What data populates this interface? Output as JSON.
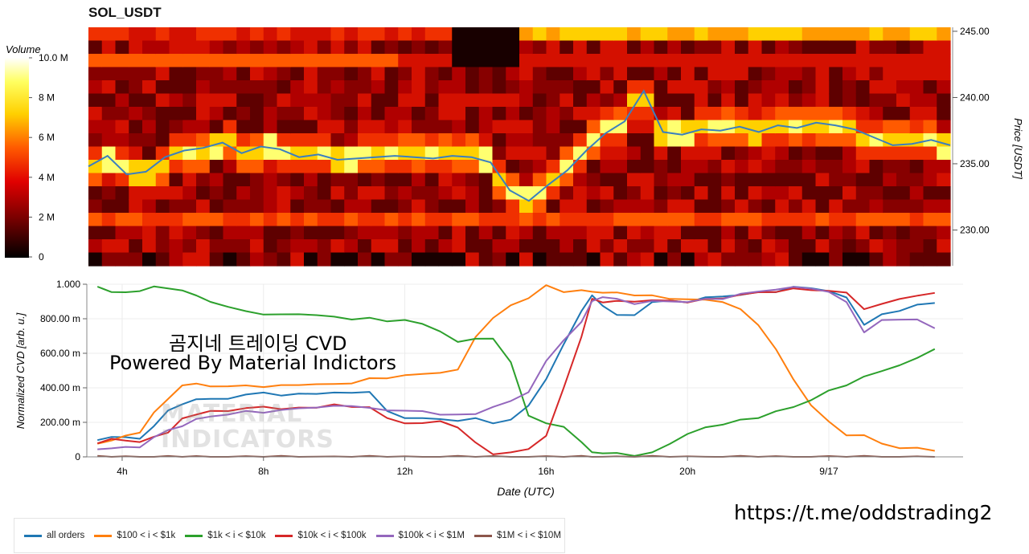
{
  "heatmap": {
    "title": "SOL_USDT",
    "colorbar": {
      "label": "Volume",
      "ticks": [
        "0",
        "2 M",
        "4 M",
        "6 M",
        "8 M",
        "10.0 M"
      ],
      "colors": [
        "#000000",
        "#7a0000",
        "#e00000",
        "#ff5a00",
        "#ffd000",
        "#ffff60",
        "#ffffff"
      ]
    },
    "price_axis": {
      "label": "Price [USDT]",
      "ticks": [
        "245.00",
        "240.00",
        "235.00",
        "230.00"
      ]
    }
  },
  "cvd": {
    "ylabel": "Normalized CVD [arb. u.]",
    "xlabel": "Date (UTC)",
    "yticks": [
      "0",
      "200.00 m",
      "400.00 m",
      "600.00 m",
      "800.00 m",
      "1.000"
    ],
    "xticks": [
      "4h",
      "8h",
      "12h",
      "16h",
      "20h",
      "9/17"
    ]
  },
  "overlay": {
    "line1": "곰지네 트레이딩 CVD",
    "line2": "Powered By Material Indictors",
    "watermark_line1": "MATERIAL",
    "watermark_line2": "INDICATORS"
  },
  "link": "https://t.me/oddstrading2",
  "legend": [
    {
      "name": "all orders",
      "color": "#1f77b4"
    },
    {
      "name": "$100 < i < $1k",
      "color": "#ff7f0e"
    },
    {
      "name": "$1k < i < $10k",
      "color": "#2ca02c"
    },
    {
      "name": "$10k < i < $100k",
      "color": "#d62728"
    },
    {
      "name": "$100k < i < $1M",
      "color": "#9467bd"
    },
    {
      "name": "$1M < i < $10M",
      "color": "#8c564b"
    }
  ],
  "chart_data": [
    {
      "type": "heatmap",
      "title": "SOL_USDT",
      "ylabel": "Price [USDT]",
      "ylim": [
        227.3,
        245.3
      ],
      "colorbar_range": [
        0,
        10000000
      ],
      "x": [
        "3h",
        "3.5h",
        "4h",
        "4.5h",
        "5h",
        "5.5h",
        "6h",
        "6.5h",
        "7h",
        "7.5h",
        "8h",
        "8.5h",
        "9h",
        "9.5h",
        "10h",
        "10.5h",
        "11h",
        "11.5h",
        "12h",
        "12.5h",
        "13h",
        "13.5h",
        "14h",
        "14.5h",
        "15h",
        "15.5h",
        "16h",
        "16.5h",
        "17h",
        "17.5h",
        "18h",
        "18.5h",
        "19h",
        "19.5h",
        "20h",
        "20.5h",
        "21h",
        "21.5h",
        "22h",
        "22.5h",
        "23h",
        "23.5h",
        "0h",
        "0.5h",
        "1h",
        "1.5h"
      ],
      "price_series": {
        "name": "price",
        "values": [
          234.8,
          235.6,
          234.2,
          234.4,
          235.5,
          236.0,
          236.2,
          236.6,
          235.8,
          236.3,
          236.1,
          235.5,
          235.7,
          235.3,
          235.4,
          235.5,
          235.6,
          235.5,
          235.4,
          235.6,
          235.5,
          235.1,
          233.0,
          232.2,
          233.4,
          234.5,
          236.0,
          237.3,
          238.2,
          240.5,
          237.4,
          237.2,
          237.6,
          237.5,
          237.8,
          237.4,
          237.9,
          237.7,
          238.1,
          237.9,
          237.6,
          237.0,
          236.4,
          236.5,
          236.8,
          236.4
        ]
      }
    },
    {
      "type": "line",
      "xlabel": "Date (UTC)",
      "ylabel": "Normalized CVD [arb. u.]",
      "ylim": [
        0,
        1.0
      ],
      "x": [
        3.3,
        3.7,
        4.1,
        4.5,
        4.9,
        5.3,
        5.7,
        6.1,
        6.5,
        7.0,
        7.5,
        8.0,
        8.5,
        9.0,
        9.5,
        10.0,
        10.5,
        11.0,
        11.5,
        12.0,
        12.5,
        13.0,
        13.5,
        14.0,
        14.5,
        15.0,
        15.5,
        16.0,
        16.5,
        17.0,
        17.3,
        17.6,
        18.0,
        18.5,
        19.0,
        19.5,
        20.0,
        20.5,
        21.0,
        21.5,
        22.0,
        22.5,
        23.0,
        23.5,
        24.0,
        24.5,
        25.0,
        25.5,
        26.0,
        26.5,
        27.0
      ],
      "series": [
        {
          "name": "all orders",
          "values": [
            0.1,
            0.11,
            0.12,
            0.1,
            0.18,
            0.27,
            0.3,
            0.34,
            0.33,
            0.34,
            0.36,
            0.37,
            0.36,
            0.36,
            0.37,
            0.37,
            0.37,
            0.38,
            0.26,
            0.23,
            0.22,
            0.22,
            0.21,
            0.22,
            0.2,
            0.21,
            0.3,
            0.45,
            0.65,
            0.85,
            0.93,
            0.88,
            0.82,
            0.82,
            0.9,
            0.9,
            0.9,
            0.92,
            0.93,
            0.94,
            0.95,
            0.96,
            0.98,
            0.98,
            0.96,
            0.92,
            0.77,
            0.82,
            0.85,
            0.88,
            0.89
          ]
        },
        {
          "name": "$100 < i < $1k",
          "values": [
            0.07,
            0.1,
            0.12,
            0.14,
            0.26,
            0.33,
            0.42,
            0.42,
            0.41,
            0.41,
            0.41,
            0.41,
            0.41,
            0.42,
            0.42,
            0.42,
            0.43,
            0.45,
            0.46,
            0.47,
            0.48,
            0.49,
            0.5,
            0.7,
            0.8,
            0.88,
            0.92,
            0.99,
            0.96,
            0.96,
            0.96,
            0.95,
            0.95,
            0.94,
            0.93,
            0.92,
            0.91,
            0.91,
            0.9,
            0.85,
            0.77,
            0.62,
            0.45,
            0.3,
            0.2,
            0.13,
            0.12,
            0.08,
            0.05,
            0.05,
            0.04
          ]
        },
        {
          "name": "$1k < i < $10k",
          "values": [
            0.98,
            0.96,
            0.95,
            0.96,
            0.99,
            0.97,
            0.97,
            0.93,
            0.9,
            0.87,
            0.84,
            0.83,
            0.82,
            0.83,
            0.82,
            0.81,
            0.8,
            0.8,
            0.79,
            0.79,
            0.77,
            0.73,
            0.66,
            0.69,
            0.68,
            0.55,
            0.24,
            0.19,
            0.18,
            0.08,
            0.03,
            0.02,
            0.02,
            0.01,
            0.02,
            0.08,
            0.13,
            0.17,
            0.19,
            0.21,
            0.23,
            0.26,
            0.29,
            0.33,
            0.38,
            0.42,
            0.46,
            0.5,
            0.53,
            0.57,
            0.63
          ]
        },
        {
          "name": "$10k < i < $100k",
          "values": [
            0.08,
            0.1,
            0.1,
            0.08,
            0.12,
            0.14,
            0.22,
            0.25,
            0.26,
            0.27,
            0.28,
            0.29,
            0.28,
            0.28,
            0.29,
            0.3,
            0.29,
            0.29,
            0.22,
            0.2,
            0.19,
            0.21,
            0.17,
            0.08,
            0.02,
            0.02,
            0.05,
            0.12,
            0.4,
            0.7,
            0.91,
            0.9,
            0.9,
            0.9,
            0.91,
            0.9,
            0.9,
            0.91,
            0.92,
            0.94,
            0.95,
            0.96,
            0.97,
            0.97,
            0.96,
            0.95,
            0.86,
            0.88,
            0.92,
            0.93,
            0.95
          ]
        },
        {
          "name": "$100k < i < $1M",
          "values": [
            0.04,
            0.05,
            0.06,
            0.05,
            0.12,
            0.15,
            0.18,
            0.22,
            0.23,
            0.25,
            0.26,
            0.26,
            0.27,
            0.28,
            0.29,
            0.29,
            0.3,
            0.28,
            0.27,
            0.27,
            0.26,
            0.25,
            0.24,
            0.25,
            0.29,
            0.32,
            0.38,
            0.55,
            0.68,
            0.78,
            0.9,
            0.93,
            0.91,
            0.89,
            0.9,
            0.9,
            0.9,
            0.91,
            0.92,
            0.94,
            0.96,
            0.97,
            0.98,
            0.98,
            0.95,
            0.9,
            0.72,
            0.79,
            0.8,
            0.79,
            0.75
          ]
        },
        {
          "name": "$1M < i < $10M",
          "values": [
            0.0,
            0.0,
            0.0,
            0.0,
            0.0,
            0.0,
            0.0,
            0.0,
            0.0,
            0.0,
            0.0,
            0.0,
            0.0,
            0.0,
            0.0,
            0.0,
            0.0,
            0.0,
            0.0,
            0.0,
            0.0,
            0.0,
            0.0,
            0.0,
            0.0,
            0.0,
            0.0,
            0.0,
            0.0,
            0.0,
            0.0,
            0.0,
            0.0,
            0.0,
            0.0,
            0.0,
            0.0,
            0.0,
            0.0,
            0.0,
            0.0,
            0.0,
            0.0,
            0.0,
            0.0,
            0.0,
            0.0,
            0.0,
            0.0,
            0.0,
            0.0
          ]
        }
      ]
    }
  ]
}
